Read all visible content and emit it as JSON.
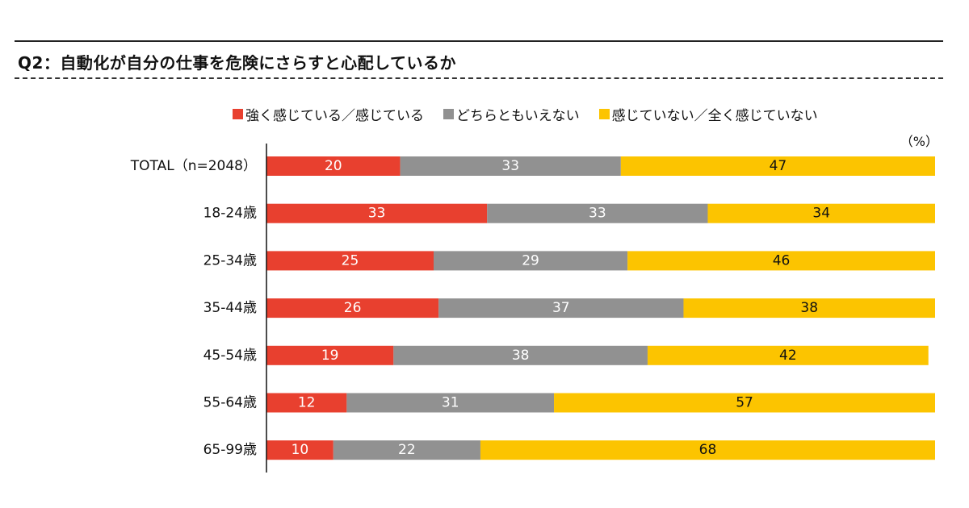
{
  "title": "Q2：自動化が自分の仕事を危険にさらすと心配しているか",
  "unit_label": "（%）",
  "chart_data": {
    "type": "bar",
    "orientation": "horizontal",
    "stacked": true,
    "categories": [
      "TOTAL（n=2048）",
      "18-24歳",
      "25-34歳",
      "35-44歳",
      "45-54歳",
      "55-64歳",
      "65-99歳"
    ],
    "series": [
      {
        "name": "強く感じている／感じている",
        "color": "#e8402f",
        "label_color": "#ffffff",
        "values": [
          20,
          33,
          25,
          26,
          19,
          12,
          10
        ]
      },
      {
        "name": "どちらともいえない",
        "color": "#919191",
        "label_color": "#ffffff",
        "values": [
          33,
          33,
          29,
          37,
          38,
          31,
          22
        ]
      },
      {
        "name": "感じていない／全く感じていない",
        "color": "#fcc400",
        "label_color": "#111111",
        "values": [
          47,
          34,
          46,
          38,
          42,
          57,
          68
        ]
      }
    ],
    "xlim": [
      0,
      100
    ],
    "legend_position": "top",
    "grid": false
  }
}
